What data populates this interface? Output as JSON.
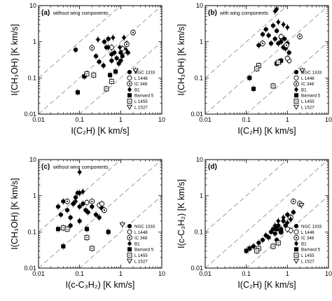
{
  "figure": {
    "marker_color": "#000000",
    "guide_color": "#888888"
  },
  "chart_data": [
    {
      "panel_label": "(a)",
      "panel_note": "without wing components",
      "type": "scatter",
      "xlabel": "I(C₂H) [K km/s]",
      "ylabel": "I(CH₃OH) [K km/s]",
      "xscale": "log",
      "yscale": "log",
      "xlim": [
        0.01,
        10
      ],
      "ylim": [
        0.01,
        10
      ],
      "xticks": [
        "0.01",
        "0.1",
        "1",
        "10"
      ],
      "yticks": [
        "0.01",
        "0.1",
        "1",
        "10"
      ],
      "reference_lines": [
        0.1,
        1,
        10
      ],
      "legend_position": "bottom-right",
      "series": [
        {
          "name": "NGC 1333",
          "marker": "filled-circle",
          "points": [
            [
              0.08,
              0.6
            ],
            [
              0.25,
              0.4
            ],
            [
              0.3,
              0.28
            ],
            [
              0.38,
              0.22
            ],
            [
              0.4,
              1.0
            ],
            [
              0.45,
              0.7
            ],
            [
              0.5,
              1.2
            ],
            [
              0.6,
              0.45
            ],
            [
              0.7,
              0.5
            ],
            [
              0.8,
              0.35
            ],
            [
              0.9,
              0.25
            ],
            [
              1.0,
              0.3
            ],
            [
              1.1,
              0.4
            ],
            [
              1.3,
              0.6
            ],
            [
              1.5,
              0.5
            ],
            [
              1.4,
              0.9
            ],
            [
              1.0,
              0.5
            ],
            [
              0.6,
              0.3
            ]
          ]
        },
        {
          "name": "L 1448",
          "marker": "open-circle",
          "points": [
            [
              0.6,
              0.7
            ],
            [
              1.2,
              0.55
            ],
            [
              1.1,
              0.65
            ]
          ]
        },
        {
          "name": "IC 348",
          "marker": "dotted-circle",
          "points": [
            [
              0.2,
              0.68
            ],
            [
              1.4,
              0.85
            ],
            [
              2.0,
              1.8
            ]
          ]
        },
        {
          "name": "B1",
          "marker": "filled-diamond",
          "points": [
            [
              0.28,
              1.15
            ],
            [
              0.5,
              0.7
            ],
            [
              0.65,
              1.3
            ],
            [
              0.95,
              0.7
            ],
            [
              1.2,
              1.3
            ]
          ]
        },
        {
          "name": "Barnard 5",
          "marker": "filled-square",
          "points": [
            [
              0.13,
              0.11
            ],
            [
              0.09,
              0.04
            ],
            [
              0.55,
              0.12
            ],
            [
              0.75,
              0.15
            ]
          ]
        },
        {
          "name": "L 1455",
          "marker": "open-square",
          "points": [
            [
              0.15,
              0.13
            ],
            [
              0.22,
              0.12
            ],
            [
              0.45,
              0.05
            ],
            [
              0.6,
              0.08
            ]
          ]
        },
        {
          "name": "L 1527",
          "marker": "open-triangle-down",
          "points": [
            [
              2.3,
              0.16
            ]
          ]
        }
      ]
    },
    {
      "panel_label": "(b)",
      "panel_note": "with wing components",
      "type": "scatter",
      "xlabel": "I(C₂H) [K km/s]",
      "ylabel": "I(CH₃OH) [K km/s]",
      "xscale": "log",
      "yscale": "log",
      "xlim": [
        0.01,
        10
      ],
      "ylim": [
        0.01,
        10
      ],
      "xticks": [
        "0.01",
        "0.1",
        "1",
        "10"
      ],
      "yticks": [
        "0.01",
        "0.1",
        "1",
        "10"
      ],
      "reference_lines": [
        0.1,
        1,
        10
      ],
      "legend_position": "bottom-right",
      "series": [
        {
          "name": "NGC 1333",
          "marker": "filled-circle",
          "points": [
            [
              0.25,
              1.6
            ],
            [
              0.3,
              2.2
            ],
            [
              0.35,
              1.5
            ],
            [
              0.45,
              2.8
            ],
            [
              0.5,
              1.2
            ],
            [
              0.55,
              2.0
            ],
            [
              0.6,
              0.9
            ],
            [
              0.7,
              1.0
            ],
            [
              0.85,
              1.2
            ],
            [
              0.9,
              0.65
            ],
            [
              1.0,
              0.9
            ],
            [
              1.1,
              0.5
            ],
            [
              0.8,
              0.7
            ],
            [
              0.7,
              1.3
            ],
            [
              0.2,
              0.8
            ],
            [
              0.4,
              0.9
            ]
          ]
        },
        {
          "name": "L 1448",
          "marker": "open-circle",
          "points": [
            [
              0.7,
              1.4
            ],
            [
              1.1,
              0.3
            ],
            [
              1.0,
              0.35
            ]
          ]
        },
        {
          "name": "IC 348",
          "marker": "dotted-circle",
          "points": [
            [
              0.25,
              0.9
            ],
            [
              0.95,
              0.8
            ],
            [
              2.0,
              1.4
            ]
          ]
        },
        {
          "name": "B1",
          "marker": "filled-diamond",
          "points": [
            [
              0.5,
              7.0
            ],
            [
              0.55,
              8.0
            ],
            [
              0.6,
              3.5
            ],
            [
              0.8,
              3.0
            ],
            [
              1.0,
              2.5
            ]
          ]
        },
        {
          "name": "Barnard 5",
          "marker": "filled-square",
          "points": [
            [
              0.12,
              0.1
            ],
            [
              0.15,
              0.05
            ],
            [
              0.55,
              0.25
            ],
            [
              0.7,
              0.3
            ]
          ]
        },
        {
          "name": "L 1455",
          "marker": "open-square",
          "points": [
            [
              0.2,
              0.22
            ],
            [
              0.18,
              0.18
            ],
            [
              0.45,
              0.06
            ],
            [
              0.6,
              0.27
            ]
          ]
        },
        {
          "name": "L 1527",
          "marker": "open-triangle-down",
          "points": [
            [
              2.3,
              0.16
            ]
          ]
        }
      ]
    },
    {
      "panel_label": "(c)",
      "panel_note": "without wing components",
      "type": "scatter",
      "xlabel": "I(c-C₃H₂) [K km/s]",
      "ylabel": "I(CH₃OH) [K km/s]",
      "xscale": "log",
      "yscale": "log",
      "xlim": [
        0.01,
        10
      ],
      "ylim": [
        0.01,
        10
      ],
      "xticks": [
        "0.01",
        "0.1",
        "1",
        "10"
      ],
      "yticks": [
        "0.01",
        "0.1",
        "1",
        "10"
      ],
      "reference_lines": [
        0.1,
        1,
        10
      ],
      "legend_position": "bottom-right",
      "series": [
        {
          "name": "NGC 1333",
          "marker": "filled-circle",
          "points": [
            [
              0.03,
              0.5
            ],
            [
              0.035,
              0.3
            ],
            [
              0.04,
              0.7
            ],
            [
              0.05,
              0.4
            ],
            [
              0.06,
              0.25
            ],
            [
              0.07,
              0.6
            ],
            [
              0.08,
              0.9
            ],
            [
              0.09,
              1.2
            ],
            [
              0.1,
              0.5
            ],
            [
              0.12,
              0.6
            ],
            [
              0.14,
              0.4
            ],
            [
              0.16,
              0.35
            ],
            [
              0.2,
              0.5
            ],
            [
              0.25,
              0.3
            ],
            [
              0.3,
              0.25
            ],
            [
              0.35,
              0.45
            ],
            [
              0.06,
              0.15
            ],
            [
              0.1,
              0.2
            ]
          ]
        },
        {
          "name": "L 1448",
          "marker": "open-circle",
          "points": [
            [
              0.15,
              0.65
            ],
            [
              0.3,
              0.55
            ],
            [
              0.35,
              0.6
            ]
          ]
        },
        {
          "name": "IC 348",
          "marker": "dotted-circle",
          "points": [
            [
              0.05,
              0.7
            ],
            [
              0.2,
              0.7
            ],
            [
              0.4,
              0.4
            ]
          ]
        },
        {
          "name": "B1",
          "marker": "filled-diamond",
          "points": [
            [
              0.07,
              0.6
            ],
            [
              0.08,
              0.7
            ],
            [
              0.1,
              4.5
            ],
            [
              0.1,
              1.2
            ],
            [
              0.12,
              1.3
            ]
          ]
        },
        {
          "name": "Barnard 5",
          "marker": "filled-square",
          "points": [
            [
              0.03,
              0.12
            ],
            [
              0.04,
              0.04
            ],
            [
              0.15,
              0.12
            ],
            [
              0.5,
              0.1
            ]
          ]
        },
        {
          "name": "L 1455",
          "marker": "open-square",
          "points": [
            [
              0.04,
              0.13
            ],
            [
              0.05,
              0.12
            ],
            [
              0.15,
              0.07
            ],
            [
              0.2,
              0.035
            ]
          ]
        },
        {
          "name": "L 1527",
          "marker": "open-triangle-down",
          "points": [
            [
              1.1,
              0.16
            ]
          ]
        }
      ]
    },
    {
      "panel_label": "(d)",
      "panel_note": "",
      "type": "scatter",
      "xlabel": "I(C₂H) [K km/s]",
      "ylabel": "I(c-C₃H₂) [K km/s]",
      "xscale": "log",
      "yscale": "log",
      "xlim": [
        0.01,
        10
      ],
      "ylim": [
        0.01,
        10
      ],
      "xticks": [
        "0.01",
        "0.1",
        "1",
        "10"
      ],
      "yticks": [
        "0.01",
        "0.1",
        "1",
        "10"
      ],
      "reference_lines": [
        0.1,
        1,
        10
      ],
      "legend_position": "bottom-right",
      "series": [
        {
          "name": "NGC 1333",
          "marker": "filled-circle",
          "points": [
            [
              0.15,
              0.04
            ],
            [
              0.2,
              0.05
            ],
            [
              0.25,
              0.06
            ],
            [
              0.3,
              0.08
            ],
            [
              0.35,
              0.07
            ],
            [
              0.4,
              0.1
            ],
            [
              0.45,
              0.12
            ],
            [
              0.5,
              0.09
            ],
            [
              0.6,
              0.15
            ],
            [
              0.7,
              0.12
            ],
            [
              0.8,
              0.2
            ],
            [
              0.9,
              0.15
            ],
            [
              1.0,
              0.3
            ],
            [
              1.2,
              0.25
            ],
            [
              1.4,
              0.35
            ],
            [
              0.55,
              0.06
            ]
          ]
        },
        {
          "name": "L 1448",
          "marker": "open-circle",
          "points": [
            [
              0.7,
              0.1
            ],
            [
              1.2,
              0.11
            ],
            [
              1.0,
              0.12
            ]
          ]
        },
        {
          "name": "IC 348",
          "marker": "dotted-circle",
          "points": [
            [
              1.2,
              0.25
            ],
            [
              1.4,
              0.7
            ],
            [
              2.0,
              0.6
            ]
          ]
        },
        {
          "name": "B1",
          "marker": "filled-diamond",
          "points": [
            [
              0.5,
              0.15
            ],
            [
              0.6,
              0.2
            ],
            [
              0.8,
              0.25
            ],
            [
              1.0,
              0.18
            ],
            [
              1.2,
              0.22
            ]
          ]
        },
        {
          "name": "Barnard 5",
          "marker": "filled-square",
          "points": [
            [
              0.12,
              0.035
            ],
            [
              0.1,
              0.03
            ],
            [
              0.55,
              0.12
            ],
            [
              0.7,
              0.1
            ]
          ]
        },
        {
          "name": "L 1455",
          "marker": "open-square",
          "points": [
            [
              0.2,
              0.035
            ],
            [
              0.18,
              0.03
            ],
            [
              0.45,
              0.04
            ],
            [
              0.6,
              0.05
            ]
          ]
        },
        {
          "name": "L 1527",
          "marker": "open-triangle-down",
          "points": [
            [
              2.2,
              0.55
            ]
          ]
        }
      ]
    }
  ]
}
